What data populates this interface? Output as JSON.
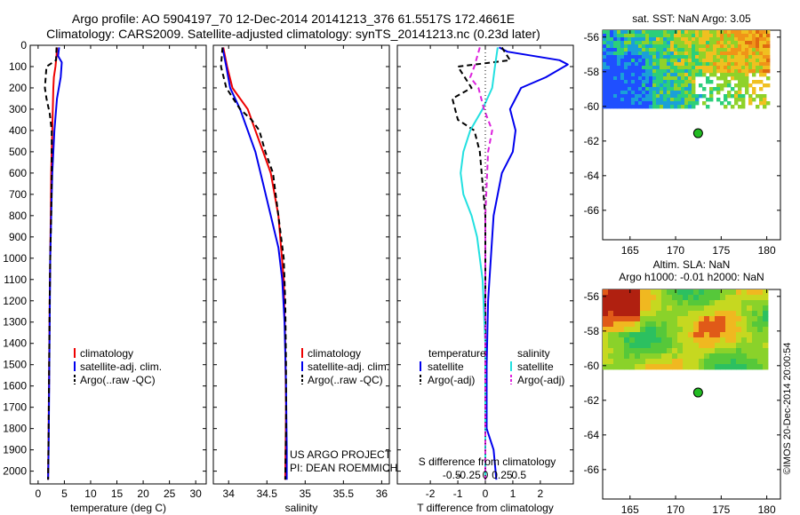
{
  "header": {
    "line1": "Argo profile: AO 5904197_70 12-Dec-2014 20141213_376 61.5517S 172.4661E",
    "line2": "Climatology: CARS2009. Satellite-adjusted climatology: synTS_20141213.nc (0.23d later)"
  },
  "side_credit": "©IMOS 20-Dec-2014 20:00:54",
  "colors": {
    "climatology": "#ee0000",
    "satellite": "#0000ee",
    "argo": "#000000",
    "sal_sat": "#22e0e0",
    "sal_argo": "#dd22dd",
    "dot": "#22bb22"
  },
  "chart_data": [
    {
      "type": "line",
      "id": "temperature",
      "xlabel": "temperature (deg C)",
      "xlim": [
        -1.5,
        32
      ],
      "ylim": [
        0,
        2060
      ],
      "xticks": [
        0,
        5,
        10,
        15,
        20,
        25,
        30
      ],
      "yticks": [
        0,
        100,
        200,
        300,
        400,
        500,
        600,
        700,
        800,
        900,
        1000,
        1100,
        1200,
        1300,
        1400,
        1500,
        1600,
        1700,
        1800,
        1900,
        2000
      ],
      "legend": [
        "climatology",
        "satellite-adj. clim.",
        "Argo(..raw -QC)"
      ],
      "series": [
        {
          "name": "climatology",
          "style": "solid",
          "color": "#ee0000",
          "points": [
            [
              3.6,
              10
            ],
            [
              3.5,
              50
            ],
            [
              3.3,
              100
            ],
            [
              3.0,
              150
            ],
            [
              2.9,
              200
            ],
            [
              2.8,
              300
            ],
            [
              2.7,
              400
            ],
            [
              2.6,
              500
            ],
            [
              2.5,
              600
            ],
            [
              2.4,
              800
            ],
            [
              2.3,
              1000
            ],
            [
              2.2,
              1200
            ],
            [
              2.1,
              1500
            ],
            [
              2.0,
              1800
            ],
            [
              1.9,
              2040
            ]
          ]
        },
        {
          "name": "satellite-adj. clim.",
          "style": "solid",
          "color": "#0000ee",
          "points": [
            [
              4.0,
              10
            ],
            [
              3.8,
              50
            ],
            [
              4.5,
              80
            ],
            [
              4.3,
              150
            ],
            [
              3.6,
              250
            ],
            [
              3.1,
              400
            ],
            [
              2.7,
              600
            ],
            [
              2.5,
              800
            ],
            [
              2.3,
              1000
            ],
            [
              2.2,
              1300
            ],
            [
              2.1,
              1600
            ],
            [
              2.0,
              1900
            ],
            [
              1.9,
              2040
            ]
          ]
        },
        {
          "name": "Argo(..raw -QC)",
          "style": "dashed",
          "color": "#000000",
          "points": [
            [
              3.5,
              10
            ],
            [
              3.4,
              70
            ],
            [
              1.6,
              100
            ],
            [
              1.3,
              200
            ],
            [
              1.6,
              250
            ],
            [
              2.2,
              320
            ],
            [
              2.6,
              400
            ],
            [
              2.6,
              600
            ],
            [
              2.5,
              800
            ],
            [
              2.3,
              1000
            ],
            [
              2.2,
              1200
            ],
            [
              2.1,
              1500
            ],
            [
              2.0,
              1800
            ],
            [
              1.9,
              2040
            ]
          ]
        }
      ]
    },
    {
      "type": "line",
      "id": "salinity",
      "xlabel": "salinity",
      "xlim": [
        33.8,
        36.1
      ],
      "ylim": [
        0,
        2060
      ],
      "xticks": [
        34,
        34.5,
        35,
        35.5,
        36
      ],
      "xticklabels": [
        "34",
        "34.5",
        "35",
        "35.5",
        "36"
      ],
      "legend": [
        "climatology",
        "satellite-adj. clim.",
        "Argo(..raw -QC)"
      ],
      "annotations": [
        "US ARGO PROJECT",
        "PI: DEAN ROEMMICH"
      ],
      "series": [
        {
          "name": "climatology",
          "style": "solid",
          "color": "#ee0000",
          "points": [
            [
              33.93,
              10
            ],
            [
              33.98,
              100
            ],
            [
              34.05,
              200
            ],
            [
              34.25,
              300
            ],
            [
              34.35,
              400
            ],
            [
              34.45,
              500
            ],
            [
              34.55,
              600
            ],
            [
              34.65,
              800
            ],
            [
              34.72,
              1100
            ],
            [
              34.74,
              1400
            ],
            [
              34.75,
              1700
            ],
            [
              34.74,
              2040
            ]
          ]
        },
        {
          "name": "satellite-adj. clim.",
          "style": "solid",
          "color": "#0000ee",
          "points": [
            [
              33.92,
              10
            ],
            [
              33.97,
              100
            ],
            [
              34.02,
              200
            ],
            [
              34.15,
              300
            ],
            [
              34.25,
              400
            ],
            [
              34.35,
              500
            ],
            [
              34.45,
              650
            ],
            [
              34.55,
              800
            ],
            [
              34.65,
              950
            ],
            [
              34.7,
              1100
            ],
            [
              34.73,
              1300
            ],
            [
              34.75,
              1600
            ],
            [
              34.76,
              1900
            ],
            [
              34.76,
              2040
            ]
          ]
        },
        {
          "name": "Argo(..raw -QC)",
          "style": "dashed",
          "color": "#000000",
          "points": [
            [
              33.92,
              10
            ],
            [
              33.9,
              100
            ],
            [
              33.97,
              200
            ],
            [
              34.15,
              300
            ],
            [
              34.3,
              350
            ],
            [
              34.4,
              400
            ],
            [
              34.48,
              500
            ],
            [
              34.58,
              600
            ],
            [
              34.65,
              800
            ],
            [
              34.72,
              1000
            ],
            [
              34.74,
              1200
            ],
            [
              34.75,
              1500
            ],
            [
              34.75,
              1800
            ],
            [
              34.74,
              2040
            ]
          ]
        }
      ]
    },
    {
      "type": "line",
      "id": "difference",
      "xlabel": "T difference from climatology",
      "xlabel_top": "S difference from climatology",
      "xlim": [
        -3.2,
        3.2
      ],
      "ylim": [
        0,
        2060
      ],
      "xticks": [
        -2,
        -1,
        0,
        1,
        2
      ],
      "sticks": [
        -0.5,
        -0.25,
        0,
        0.25,
        0.5
      ],
      "sticklabels": [
        "-0.5",
        "-0.25",
        "0",
        "0.25",
        "0.5"
      ],
      "legend_temperature_title": "temperature",
      "legend_salinity_title": "salinity",
      "legend_temperature": [
        "satellite",
        "Argo(-adj)"
      ],
      "legend_salinity": [
        "satellite",
        "Argo(-adj)"
      ],
      "series": [
        {
          "name": "T satellite",
          "style": "solid",
          "color": "#0000ee",
          "points": [
            [
              0.5,
              10
            ],
            [
              0.8,
              30
            ],
            [
              2.7,
              70
            ],
            [
              3.0,
              90
            ],
            [
              2.2,
              150
            ],
            [
              1.3,
              200
            ],
            [
              0.9,
              300
            ],
            [
              1.1,
              400
            ],
            [
              1.0,
              500
            ],
            [
              0.6,
              600
            ],
            [
              0.3,
              800
            ],
            [
              0.2,
              1000
            ],
            [
              0.1,
              1200
            ],
            [
              0.05,
              1500
            ],
            [
              0.05,
              1800
            ],
            [
              0.3,
              1900
            ],
            [
              0.4,
              2040
            ]
          ]
        },
        {
          "name": "T Argo(-adj)",
          "style": "dashed",
          "color": "#000000",
          "points": [
            [
              0.6,
              10
            ],
            [
              0.9,
              70
            ],
            [
              -1.0,
              100
            ],
            [
              -0.5,
              200
            ],
            [
              -1.2,
              250
            ],
            [
              -1.0,
              350
            ],
            [
              -0.4,
              400
            ],
            [
              -0.2,
              500
            ],
            [
              0.0,
              800
            ],
            [
              0.0,
              1200
            ],
            [
              0.0,
              1600
            ],
            [
              0.0,
              2040
            ]
          ]
        },
        {
          "name": "S satellite",
          "style": "solid",
          "color": "#22e0e0",
          "points": [
            [
              0.45,
              10
            ],
            [
              0.35,
              100
            ],
            [
              0.25,
              200
            ],
            [
              -0.1,
              300
            ],
            [
              -0.55,
              400
            ],
            [
              -0.8,
              500
            ],
            [
              -0.9,
              600
            ],
            [
              -0.8,
              700
            ],
            [
              -0.5,
              800
            ],
            [
              -0.3,
              900
            ],
            [
              -0.1,
              1100
            ],
            [
              0.0,
              1400
            ],
            [
              0.0,
              1600
            ],
            [
              0.0,
              1900
            ],
            [
              0.0,
              2040
            ]
          ]
        },
        {
          "name": "S Argo(-adj)",
          "style": "dashed",
          "color": "#dd22dd",
          "points": [
            [
              -0.2,
              10
            ],
            [
              -0.4,
              100
            ],
            [
              -0.55,
              150
            ],
            [
              -0.25,
              200
            ],
            [
              -0.05,
              300
            ],
            [
              0.25,
              400
            ],
            [
              0.1,
              500
            ],
            [
              0.0,
              800
            ],
            [
              0.0,
              1200
            ],
            [
              0.0,
              1600
            ],
            [
              0.0,
              2040
            ]
          ]
        }
      ]
    },
    {
      "type": "heatmap",
      "id": "sst_map",
      "title": "sat. SST: NaN Argo: 3.05",
      "xlim": [
        162,
        181.5
      ],
      "ylim": [
        -67.7,
        -55.6
      ],
      "xticks": [
        165,
        170,
        175,
        180
      ],
      "yticks": [
        -56,
        -58,
        -60,
        -62,
        -64,
        -66
      ],
      "data_extent": {
        "lon": [
          162,
          180
        ],
        "lat": [
          -60,
          -55.6
        ]
      },
      "argo_position": {
        "lon": 172.47,
        "lat": -61.55
      }
    },
    {
      "type": "heatmap",
      "id": "sla_map",
      "title": "Altim. SLA: NaN",
      "subtitle": "Argo h1000: -0.01 h2000: NaN",
      "xlim": [
        162,
        181.5
      ],
      "ylim": [
        -67.7,
        -55.6
      ],
      "xticks": [
        165,
        170,
        175,
        180
      ],
      "yticks": [
        -56,
        -58,
        -60,
        -62,
        -64,
        -66
      ],
      "data_extent": {
        "lon": [
          162,
          180
        ],
        "lat": [
          -60,
          -55.6
        ]
      },
      "argo_position": {
        "lon": 172.47,
        "lat": -61.55
      }
    }
  ]
}
